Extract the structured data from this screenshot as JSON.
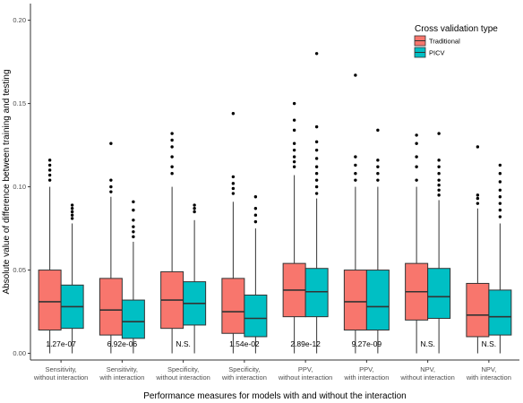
{
  "chart_data": {
    "type": "boxplot",
    "xlabel": "Performance measures for models with and without the interaction",
    "ylabel": "Absolute value of difference between training and testing",
    "ylim": [
      -0.004,
      0.21
    ],
    "yticks": [
      0.0,
      0.05,
      0.1,
      0.15,
      0.2
    ],
    "ytick_labels": [
      "0.00",
      "0.05",
      "0.10",
      "0.15",
      "0.20"
    ],
    "grid": false,
    "legend": {
      "title": "Cross validation type",
      "placement": "top-right"
    },
    "series": [
      {
        "name": "Traditional",
        "color": "#F8766D"
      },
      {
        "name": "PICV",
        "color": "#00BFC4"
      }
    ],
    "categories": [
      {
        "label": [
          "Sensitivity,",
          "without interaction"
        ],
        "pvalue": "1.27e-07"
      },
      {
        "label": [
          "Sensitivity,",
          "with interaction"
        ],
        "pvalue": "6.92e-06"
      },
      {
        "label": [
          "Specificity,",
          "without interaction"
        ],
        "pvalue": "N.S."
      },
      {
        "label": [
          "Specificity,",
          "with interaction"
        ],
        "pvalue": "1.54e-02"
      },
      {
        "label": [
          "PPV,",
          "without interaction"
        ],
        "pvalue": "2.89e-12"
      },
      {
        "label": [
          "PPV,",
          "with interaction"
        ],
        "pvalue": "9.27e-09"
      },
      {
        "label": [
          "NPV,",
          "without interaction"
        ],
        "pvalue": "N.S."
      },
      {
        "label": [
          "NPV,",
          "with interaction"
        ],
        "pvalue": "N.S."
      }
    ],
    "boxes": [
      [
        {
          "min": 0.0,
          "q1": 0.014,
          "median": 0.031,
          "q3": 0.05,
          "max": 0.1,
          "outliers": [
            0.104,
            0.107,
            0.11,
            0.113,
            0.116
          ]
        },
        {
          "min": 0.0,
          "q1": 0.015,
          "median": 0.028,
          "q3": 0.041,
          "max": 0.078,
          "outliers": [
            0.081,
            0.083,
            0.085,
            0.087,
            0.089
          ]
        }
      ],
      [
        {
          "min": 0.0,
          "q1": 0.011,
          "median": 0.026,
          "q3": 0.045,
          "max": 0.094,
          "outliers": [
            0.097,
            0.1,
            0.104,
            0.126
          ]
        },
        {
          "min": 0.0,
          "q1": 0.009,
          "median": 0.019,
          "q3": 0.032,
          "max": 0.067,
          "outliers": [
            0.07,
            0.073,
            0.076,
            0.08,
            0.086,
            0.091
          ]
        }
      ],
      [
        {
          "min": 0.0,
          "q1": 0.015,
          "median": 0.032,
          "q3": 0.049,
          "max": 0.1,
          "outliers": [
            0.108,
            0.112,
            0.118,
            0.124,
            0.128,
            0.132
          ]
        },
        {
          "min": 0.0,
          "q1": 0.017,
          "median": 0.03,
          "q3": 0.043,
          "max": 0.08,
          "outliers": [
            0.085,
            0.087,
            0.089
          ]
        }
      ],
      [
        {
          "min": 0.0,
          "q1": 0.012,
          "median": 0.025,
          "q3": 0.045,
          "max": 0.091,
          "outliers": [
            0.096,
            0.099,
            0.102,
            0.106,
            0.144
          ]
        },
        {
          "min": 0.0,
          "q1": 0.01,
          "median": 0.021,
          "q3": 0.035,
          "max": 0.075,
          "outliers": [
            0.079,
            0.083,
            0.087,
            0.094
          ]
        }
      ],
      [
        {
          "min": 0.0,
          "q1": 0.022,
          "median": 0.038,
          "q3": 0.054,
          "max": 0.107,
          "outliers": [
            0.112,
            0.115,
            0.118,
            0.122,
            0.126,
            0.134,
            0.14,
            0.15
          ]
        },
        {
          "min": 0.0,
          "q1": 0.022,
          "median": 0.037,
          "q3": 0.051,
          "max": 0.093,
          "outliers": [
            0.096,
            0.1,
            0.104,
            0.108,
            0.112,
            0.117,
            0.122,
            0.127,
            0.136,
            0.18
          ]
        }
      ],
      [
        {
          "min": 0.0,
          "q1": 0.014,
          "median": 0.031,
          "q3": 0.05,
          "max": 0.1,
          "outliers": [
            0.104,
            0.108,
            0.113,
            0.118,
            0.167
          ]
        },
        {
          "min": 0.0,
          "q1": 0.014,
          "median": 0.028,
          "q3": 0.05,
          "max": 0.1,
          "outliers": [
            0.104,
            0.108,
            0.112,
            0.116,
            0.134
          ]
        }
      ],
      [
        {
          "min": 0.0,
          "q1": 0.02,
          "median": 0.037,
          "q3": 0.054,
          "max": 0.1,
          "outliers": [
            0.104,
            0.112,
            0.118,
            0.126,
            0.131
          ]
        },
        {
          "min": 0.0,
          "q1": 0.021,
          "median": 0.034,
          "q3": 0.051,
          "max": 0.092,
          "outliers": [
            0.095,
            0.098,
            0.101,
            0.104,
            0.108,
            0.112,
            0.116,
            0.132
          ]
        }
      ],
      [
        {
          "min": 0.0,
          "q1": 0.01,
          "median": 0.023,
          "q3": 0.042,
          "max": 0.087,
          "outliers": [
            0.09,
            0.093,
            0.095,
            0.124
          ]
        },
        {
          "min": 0.0,
          "q1": 0.011,
          "median": 0.022,
          "q3": 0.038,
          "max": 0.078,
          "outliers": [
            0.082,
            0.086,
            0.09,
            0.094,
            0.098,
            0.103,
            0.108,
            0.113
          ]
        }
      ]
    ]
  }
}
